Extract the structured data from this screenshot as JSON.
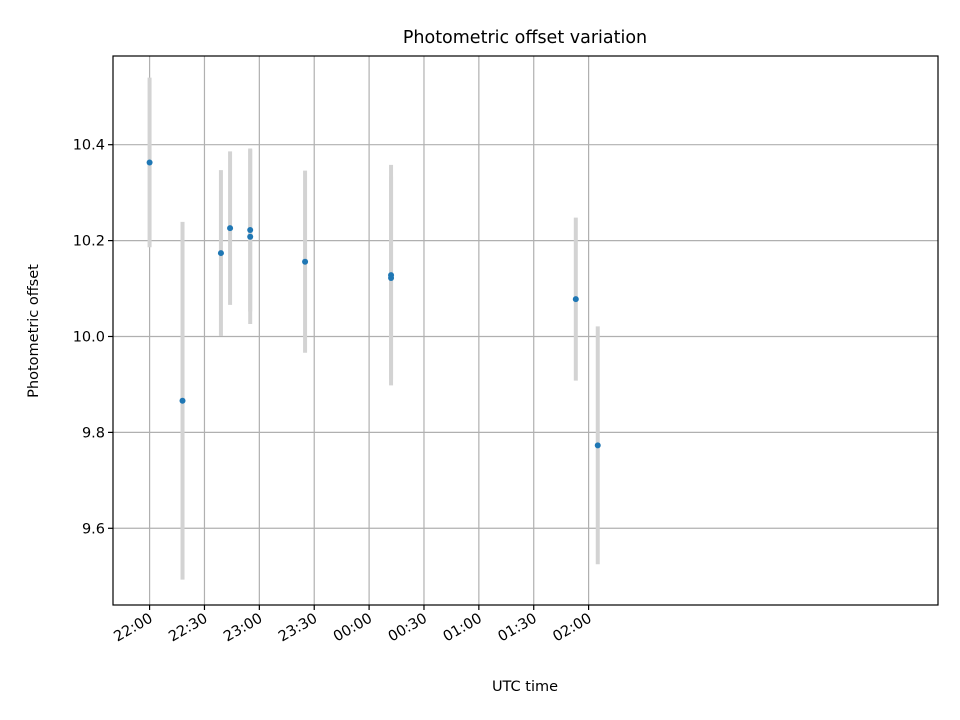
{
  "chart_data": {
    "type": "scatter",
    "title": "Photometric offset variation",
    "xlabel": "UTC time",
    "ylabel": "Photometric offset",
    "x_range_minutes_from_2200": [
      -20,
      431
    ],
    "ylim": [
      9.44,
      10.585
    ],
    "grid": true,
    "x_ticks": [
      "22:00",
      "22:30",
      "23:00",
      "23:30",
      "00:00",
      "00:30",
      "01:00",
      "01:30",
      "02:00"
    ],
    "y_ticks": [
      "9.6",
      "9.8",
      "10.0",
      "10.2",
      "10.4"
    ],
    "points": [
      {
        "time": "22:00",
        "y": 10.363,
        "err": 0.177
      },
      {
        "time": "22:18",
        "y": 9.866,
        "err": 0.373
      },
      {
        "time": "22:39",
        "y": 10.174,
        "err": 0.173
      },
      {
        "time": "22:44",
        "y": 10.226,
        "err": 0.16
      },
      {
        "time": "22:55",
        "y": 10.222,
        "err": 0.17
      },
      {
        "time": "22:55",
        "y": 10.208,
        "err": 0.182
      },
      {
        "time": "23:25",
        "y": 10.156,
        "err": 0.19
      },
      {
        "time": "00:12",
        "y": 10.128,
        "err": 0.23
      },
      {
        "time": "00:12",
        "y": 10.122,
        "err": 0.212
      },
      {
        "time": "01:53",
        "y": 10.078,
        "err": 0.17
      },
      {
        "time": "02:05",
        "y": 9.773,
        "err": 0.248
      }
    ],
    "marker_color": "#1f77b4",
    "errorbar_color": "#d3d3d3"
  }
}
